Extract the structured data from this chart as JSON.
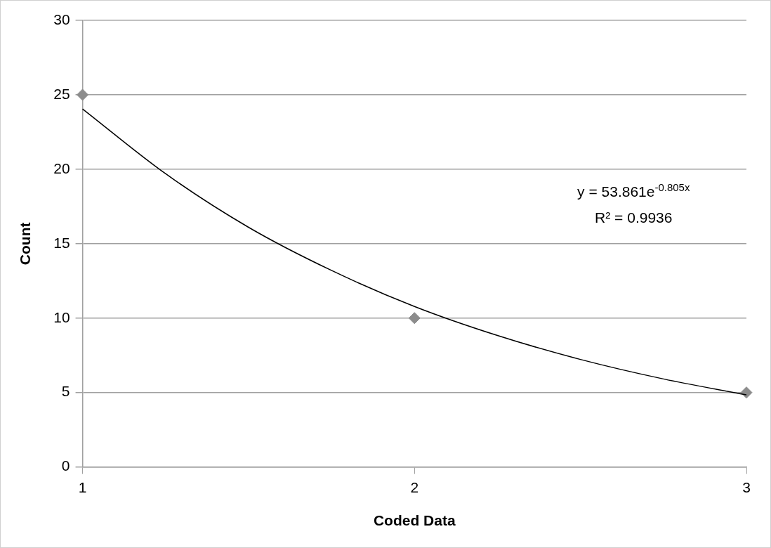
{
  "chart_data": {
    "type": "scatter",
    "xlabel": "Coded Data",
    "ylabel": "Count",
    "xlim": [
      1,
      3
    ],
    "xticks": [
      1,
      2,
      3
    ],
    "ylim": [
      0,
      30
    ],
    "yticks": [
      0,
      5,
      10,
      15,
      20,
      25,
      30
    ],
    "grid": "y",
    "legend": false,
    "series": [
      {
        "type": "scatter",
        "color": "#8c8c8c",
        "marker": "diamond",
        "x": [
          1,
          2,
          3
        ],
        "values": [
          25,
          10,
          5
        ]
      },
      {
        "type": "line",
        "color": "#000000",
        "marker": "none",
        "x": [
          1,
          1.25,
          1.5,
          1.75,
          2,
          2.25,
          2.5,
          2.75,
          3
        ],
        "values": [
          24.05,
          19.7,
          16.1,
          13.2,
          10.78,
          8.83,
          7.22,
          5.91,
          4.84
        ]
      }
    ],
    "annotations": [
      "y = 53.861e$^{-0.805x}$",
      "R² = 0.9936"
    ]
  }
}
